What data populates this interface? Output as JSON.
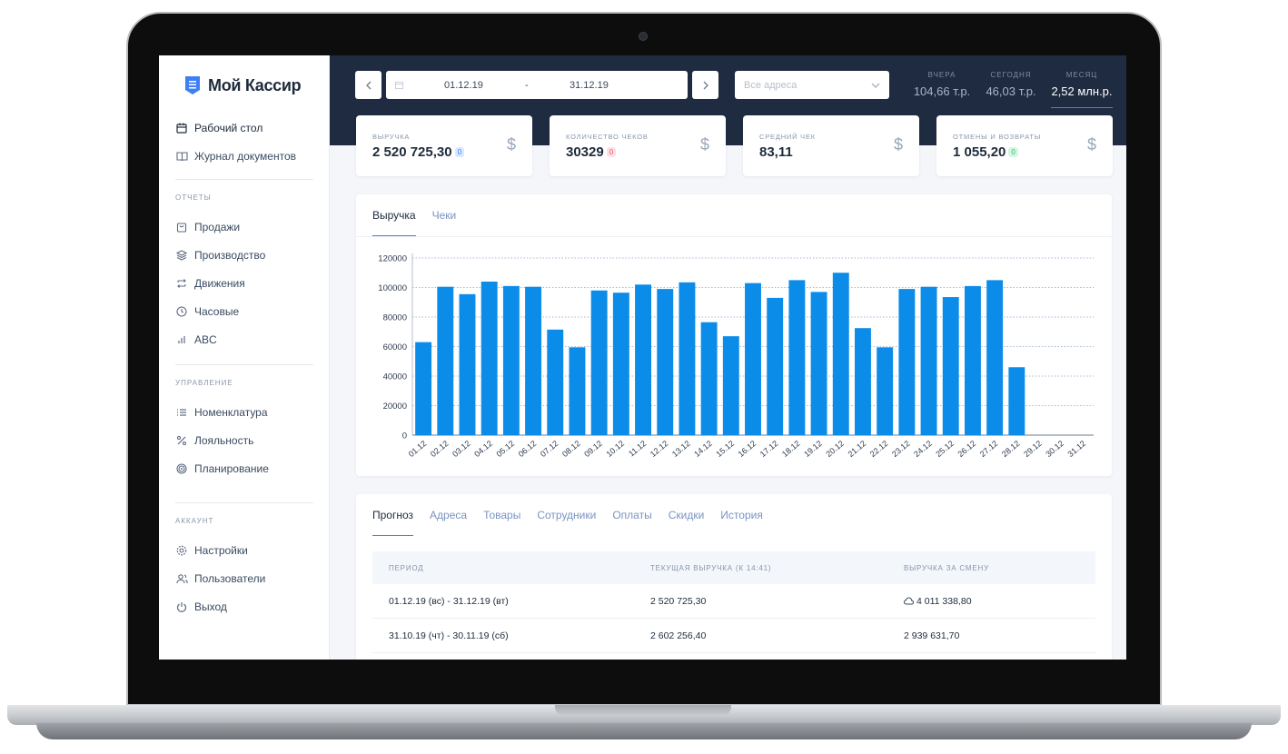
{
  "app": {
    "title": "Мой Кассир"
  },
  "sidebar": {
    "main": [
      {
        "label": "Рабочий стол",
        "icon": "calendar-icon"
      },
      {
        "label": "Журнал документов",
        "icon": "book-icon"
      }
    ],
    "reports_label": "Отчеты",
    "reports": [
      {
        "label": "Продажи",
        "icon": "bag-icon"
      },
      {
        "label": "Производство",
        "icon": "layers-icon"
      },
      {
        "label": "Движения",
        "icon": "repeat-icon"
      },
      {
        "label": "Часовые",
        "icon": "clock-icon"
      },
      {
        "label": "ABC",
        "icon": "bar-chart-icon"
      }
    ],
    "manage_label": "Управление",
    "manage": [
      {
        "label": "Номенклатура",
        "icon": "list-icon"
      },
      {
        "label": "Лояльность",
        "icon": "percent-icon"
      },
      {
        "label": "Планирование",
        "icon": "target-icon"
      }
    ],
    "account_label": "Аккаунт",
    "account": [
      {
        "label": "Настройки",
        "icon": "gear-icon"
      },
      {
        "label": "Пользователи",
        "icon": "users-icon"
      },
      {
        "label": "Выход",
        "icon": "power-icon"
      }
    ]
  },
  "header": {
    "date_from": "01.12.19",
    "date_sep": "-",
    "date_to": "31.12.19",
    "address_placeholder": "Все адреса",
    "periods": [
      {
        "label": "Вчера",
        "value": "104,66 т.р."
      },
      {
        "label": "Сегодня",
        "value": "46,03 т.р."
      },
      {
        "label": "Месяц",
        "value": "2,52 млн.р.",
        "active": true
      }
    ]
  },
  "stats": [
    {
      "label": "Выручка",
      "value": "2 520 725,30",
      "badge": "0",
      "badge_color": "blue"
    },
    {
      "label": "Количество чеков",
      "value": "30329",
      "badge": "0",
      "badge_color": "red"
    },
    {
      "label": "Средний чек",
      "value": "83,11"
    },
    {
      "label": "Отмены и возвраты",
      "value": "1 055,20",
      "badge": "0",
      "badge_color": "green"
    }
  ],
  "chart_tabs": [
    "Выручка",
    "Чеки"
  ],
  "chart_data": {
    "type": "bar",
    "categories": [
      "01.12",
      "02.12",
      "03.12",
      "04.12",
      "05.12",
      "06.12",
      "07.12",
      "08.12",
      "09.12",
      "10.12",
      "11.12",
      "12.12",
      "13.12",
      "14.12",
      "15.12",
      "16.12",
      "17.12",
      "18.12",
      "19.12",
      "20.12",
      "21.12",
      "22.12",
      "23.12",
      "24.12",
      "25.12",
      "26.12",
      "27.12",
      "28.12",
      "29.12",
      "30.12",
      "31.12"
    ],
    "values": [
      63000,
      100500,
      95500,
      104000,
      101000,
      100500,
      71500,
      59500,
      98000,
      96500,
      102000,
      99000,
      103500,
      76500,
      67000,
      103000,
      93000,
      105000,
      97000,
      110000,
      72500,
      59500,
      99000,
      100500,
      93500,
      101000,
      105000,
      46000,
      0,
      0,
      0
    ],
    "yticks": [
      0,
      20000,
      40000,
      60000,
      80000,
      100000,
      120000
    ],
    "ylim": [
      0,
      120000
    ],
    "color": "#0b8ce9",
    "grid": true
  },
  "table": {
    "tabs": [
      "Прогноз",
      "Адреса",
      "Товары",
      "Сотрудники",
      "Оплаты",
      "Скидки",
      "История"
    ],
    "headers": [
      "Период",
      "Текущая выручка (к 14:41)",
      "Выручка за смену"
    ],
    "rows": [
      [
        "01.12.19 (вс) - 31.12.19 (вт)",
        "2 520 725,30",
        "4 011 338,80"
      ],
      [
        "31.10.19 (чт) - 30.11.19 (сб)",
        "2 602 256,40",
        "2 939 631,70"
      ]
    ]
  }
}
